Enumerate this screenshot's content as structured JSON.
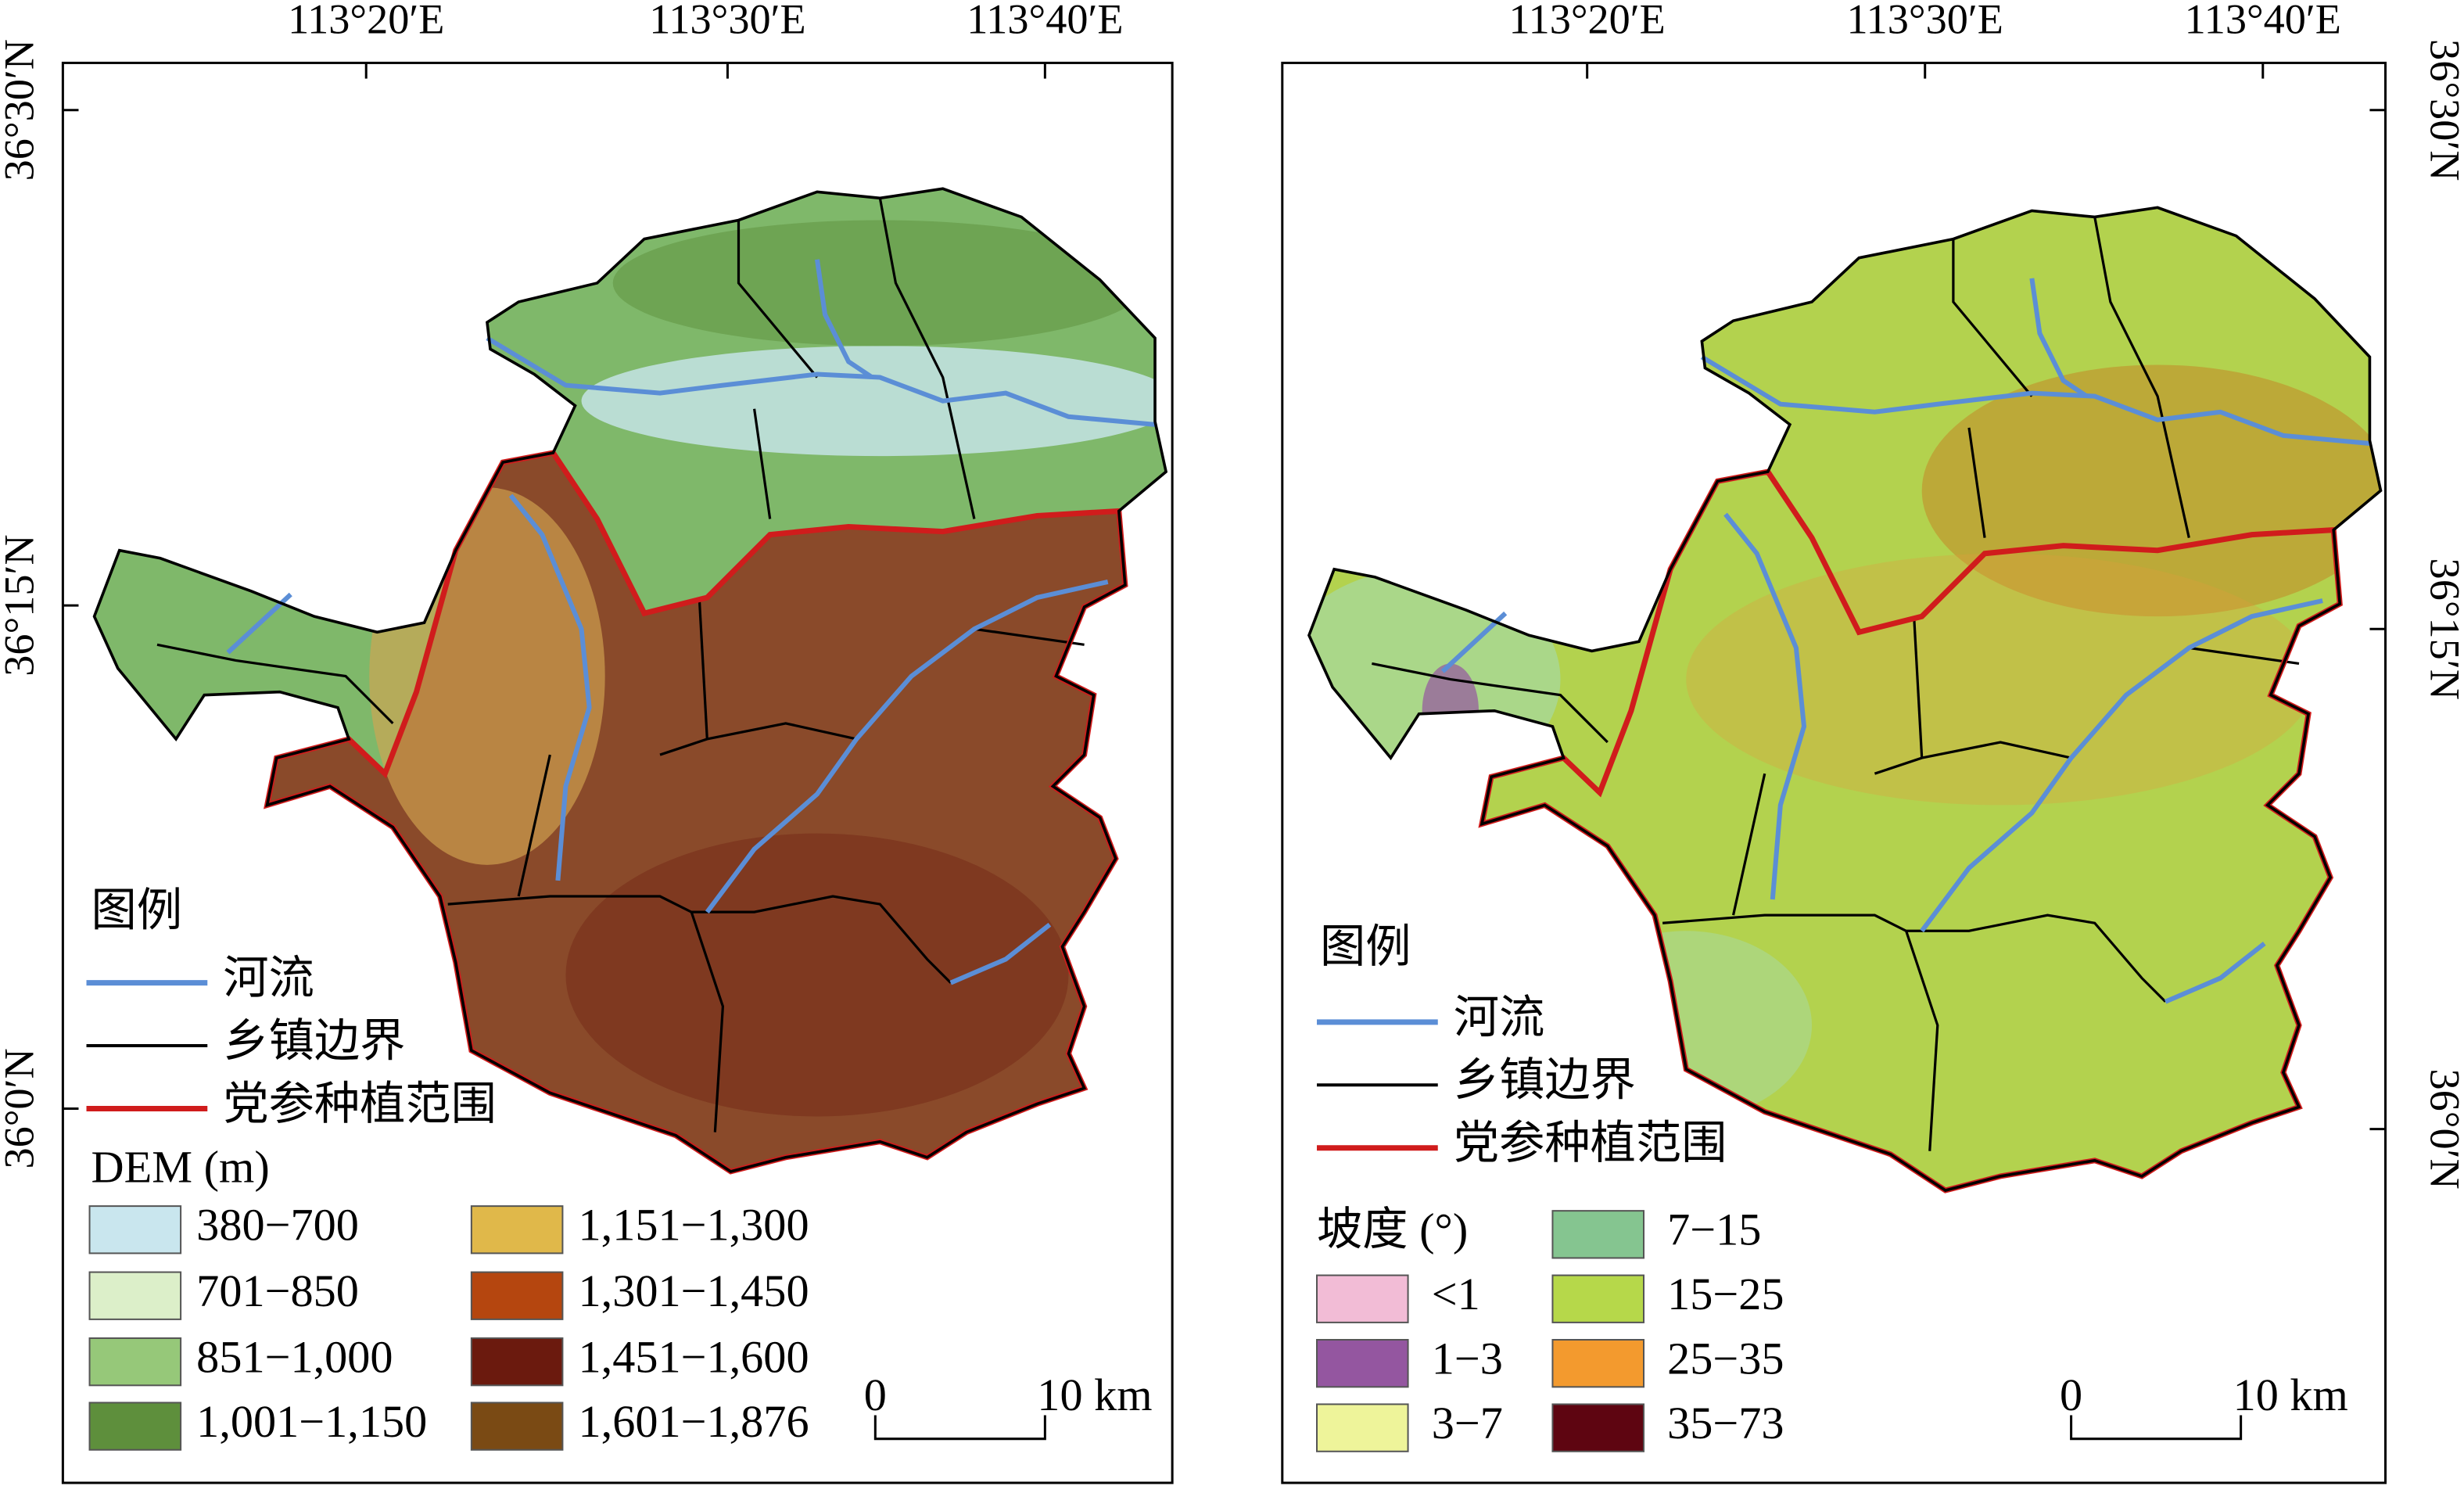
{
  "panels": [
    {
      "top_labels": [
        "113°20′E",
        "113°30′E",
        "113°40′E"
      ],
      "side_labels": [
        "36°30′N",
        "36°15′N",
        "36°0′N"
      ],
      "legend": {
        "title": "图例",
        "items": [
          {
            "name": "河流",
            "color": "#5b8ed6"
          },
          {
            "name": "乡镇边界",
            "color": "#000000"
          },
          {
            "name": "党参种植范围",
            "color": "#d01c1c"
          }
        ],
        "class_title": "DEM (m)",
        "classes": [
          {
            "label": "380−700",
            "color": "#c9e6ee"
          },
          {
            "label": "701−850",
            "color": "#dcefc9"
          },
          {
            "label": "851−1,000",
            "color": "#96c879"
          },
          {
            "label": "1,001−1,150",
            "color": "#5e8f3c"
          },
          {
            "label": "1,151−1,300",
            "color": "#e0b84a"
          },
          {
            "label": "1,301−1,450",
            "color": "#b5460f"
          },
          {
            "label": "1,451−1,600",
            "color": "#6b1a0e"
          },
          {
            "label": "1,601−1,876",
            "color": "#7a4a14"
          }
        ]
      },
      "scale": [
        "0",
        "10 km"
      ]
    },
    {
      "top_labels": [
        "113°20′E",
        "113°30′E",
        "113°40′E"
      ],
      "side_labels": [
        "36°30′N",
        "36°15′N",
        "36°0′N"
      ],
      "legend": {
        "title": "图例",
        "items": [
          {
            "name": "河流",
            "color": "#5b8ed6"
          },
          {
            "name": "乡镇边界",
            "color": "#000000"
          },
          {
            "name": "党参种植范围",
            "color": "#d01c1c"
          }
        ],
        "class_title": "坡度 (°)",
        "classes": [
          {
            "label": "<1",
            "color": "#f2bcd6"
          },
          {
            "label": "1−3",
            "color": "#9456a0"
          },
          {
            "label": "3−7",
            "color": "#eef49a"
          },
          {
            "label": "7−15",
            "color": "#85c590"
          },
          {
            "label": "15−25",
            "color": "#b6d84a"
          },
          {
            "label": "25−35",
            "color": "#f39a2e"
          },
          {
            "label": "35−73",
            "color": "#5e0511"
          }
        ]
      },
      "scale": [
        "0",
        "10 km"
      ]
    }
  ]
}
